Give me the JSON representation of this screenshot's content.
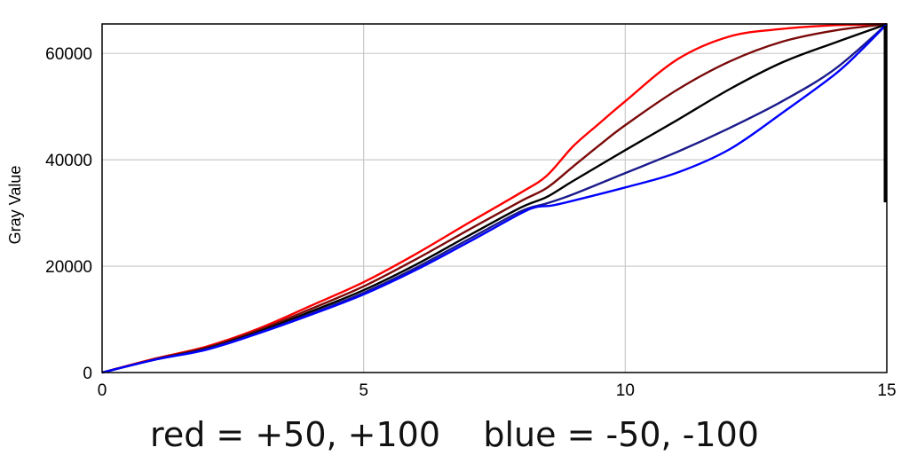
{
  "chart_data": {
    "type": "line",
    "title": "",
    "xlabel": "",
    "ylabel": "Gray Value",
    "xlim": [
      0,
      15
    ],
    "ylim": [
      0,
      65535
    ],
    "x_ticks": [
      0,
      5,
      10,
      15
    ],
    "y_ticks": [
      0,
      20000,
      40000,
      60000
    ],
    "grid": true,
    "caption": "red = +50, +100    blue = -50, -100",
    "series": [
      {
        "color": "#ff0000",
        "x": [
          0,
          1,
          2,
          3,
          4,
          5,
          6,
          7,
          8,
          8.5,
          9,
          9.5,
          10,
          11,
          12,
          13,
          14,
          15
        ],
        "y": [
          0,
          2600,
          4900,
          8300,
          12600,
          17000,
          22300,
          28100,
          33800,
          37000,
          42500,
          46800,
          51000,
          58900,
          63200,
          64600,
          65300,
          65500
        ]
      },
      {
        "color": "#7a0a0a",
        "x": [
          0,
          1,
          2,
          3,
          4,
          5,
          6,
          7,
          8,
          8.5,
          9,
          9.5,
          10,
          11,
          12,
          13,
          14,
          15
        ],
        "y": [
          0,
          2500,
          4700,
          8000,
          12000,
          16200,
          21300,
          26800,
          32200,
          34700,
          38700,
          42700,
          46500,
          53200,
          58500,
          62200,
          64300,
          65500
        ]
      },
      {
        "color": "#000000",
        "x": [
          0,
          1,
          2,
          3,
          4,
          5,
          6,
          7,
          8,
          8.5,
          9,
          10,
          11,
          12,
          13,
          14,
          15
        ],
        "y": [
          0,
          2400,
          4500,
          7700,
          11500,
          15500,
          20300,
          25700,
          31000,
          33000,
          36000,
          41800,
          47500,
          53300,
          58300,
          62000,
          65500
        ]
      },
      {
        "color": "#1a1a8c",
        "x": [
          0,
          1,
          2,
          3,
          4,
          5,
          6,
          7,
          8,
          8.5,
          9,
          10,
          11,
          12,
          13,
          14,
          15
        ],
        "y": [
          0,
          2400,
          4400,
          7500,
          11100,
          15000,
          19700,
          25000,
          30300,
          31800,
          33500,
          37500,
          41500,
          46000,
          51000,
          57000,
          65500
        ]
      },
      {
        "color": "#0000ff",
        "x": [
          0,
          1,
          2,
          3,
          4,
          5,
          6,
          7,
          8,
          8.3,
          8.6,
          9,
          10,
          11,
          12,
          13,
          14,
          14.5,
          15
        ],
        "y": [
          0,
          2400,
          4300,
          7400,
          10900,
          14700,
          19300,
          24500,
          29900,
          31100,
          31400,
          32300,
          34800,
          37600,
          42000,
          48800,
          56000,
          60500,
          65500
        ]
      }
    ]
  }
}
